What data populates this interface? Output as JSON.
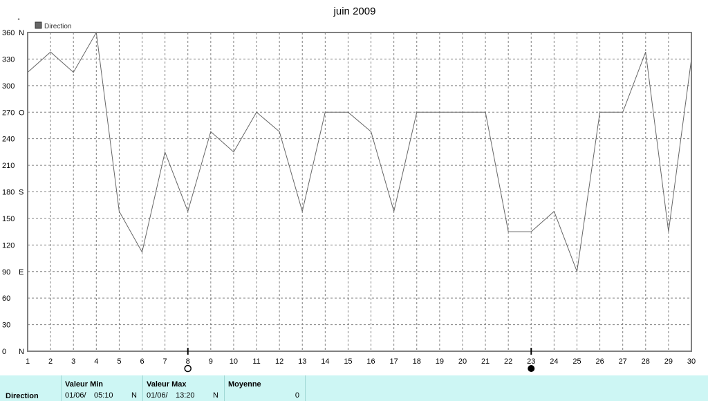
{
  "chart_data": {
    "type": "line",
    "title": "juin 2009",
    "ylabel": "°",
    "legend": {
      "label": "Direction",
      "color": "#666666",
      "placement": "top-left"
    },
    "grid": true,
    "ylim": [
      0,
      360
    ],
    "xlim": [
      1,
      30
    ],
    "x_ticks": [
      1,
      2,
      3,
      4,
      5,
      6,
      7,
      8,
      9,
      10,
      11,
      12,
      13,
      14,
      15,
      16,
      17,
      18,
      19,
      20,
      21,
      22,
      23,
      24,
      25,
      26,
      27,
      28,
      29,
      30
    ],
    "y_ticks": [
      {
        "value": 0,
        "label": "0",
        "dir": "N"
      },
      {
        "value": 30,
        "label": "30",
        "dir": ""
      },
      {
        "value": 60,
        "label": "60",
        "dir": ""
      },
      {
        "value": 90,
        "label": "90",
        "dir": "E"
      },
      {
        "value": 120,
        "label": "120",
        "dir": ""
      },
      {
        "value": 150,
        "label": "150",
        "dir": ""
      },
      {
        "value": 180,
        "label": "180",
        "dir": "S"
      },
      {
        "value": 210,
        "label": "210",
        "dir": ""
      },
      {
        "value": 240,
        "label": "240",
        "dir": ""
      },
      {
        "value": 270,
        "label": "270",
        "dir": "O"
      },
      {
        "value": 300,
        "label": "300",
        "dir": ""
      },
      {
        "value": 330,
        "label": "330",
        "dir": ""
      },
      {
        "value": 360,
        "label": "360",
        "dir": "N"
      }
    ],
    "series": [
      {
        "name": "Direction",
        "color": "#666666",
        "x": [
          1,
          2,
          3,
          4,
          5,
          6,
          7,
          8,
          9,
          10,
          11,
          12,
          13,
          14,
          15,
          16,
          17,
          18,
          19,
          20,
          21,
          22,
          23,
          24,
          25,
          26,
          27,
          28,
          29,
          30
        ],
        "values": [
          315,
          338,
          315,
          360,
          158,
          112,
          225,
          158,
          248,
          225,
          270,
          248,
          158,
          270,
          270,
          248,
          158,
          270,
          270,
          270,
          270,
          135,
          135,
          158,
          90,
          270,
          270,
          338,
          135,
          330
        ]
      }
    ],
    "moon_phases": [
      {
        "x": 8,
        "phase": "full-moon"
      },
      {
        "x": 23,
        "phase": "new-moon"
      }
    ]
  },
  "stats": {
    "row_label": "Direction",
    "min": {
      "header": "Valeur Min",
      "date": "01/06/",
      "time": "05:10",
      "dir": "N"
    },
    "max": {
      "header": "Valeur Max",
      "date": "01/06/",
      "time": "13:20",
      "dir": "N"
    },
    "avg": {
      "header": "Moyenne",
      "value": "0"
    }
  }
}
